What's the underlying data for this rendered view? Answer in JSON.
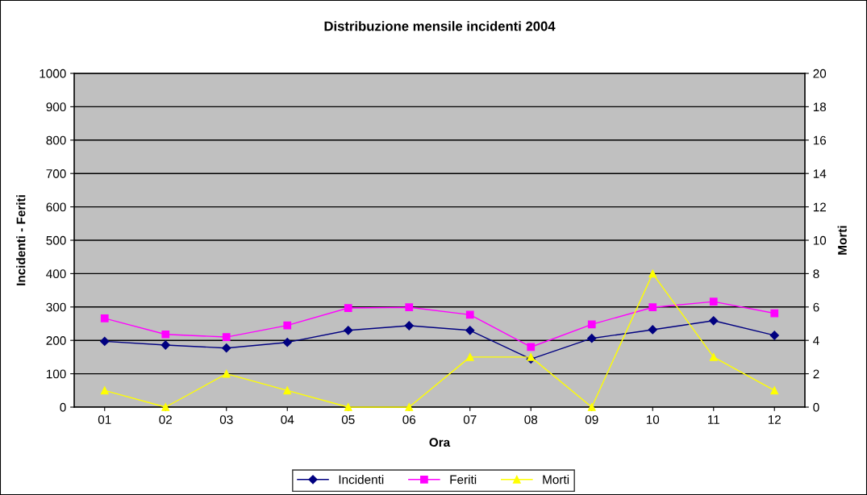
{
  "chart_data": {
    "type": "line",
    "title": "Distribuzione mensile incidenti 2004",
    "xlabel": "Ora",
    "ylabel": "Incidenti - Feriti",
    "y2label": "Morti",
    "categories": [
      "01",
      "02",
      "03",
      "04",
      "05",
      "06",
      "07",
      "08",
      "09",
      "10",
      "11",
      "12"
    ],
    "series": [
      {
        "name": "Incidenti",
        "color": "#000080",
        "marker": "diamond",
        "values": [
          197,
          186,
          177,
          194,
          230,
          244,
          230,
          144,
          206,
          232,
          259,
          215
        ]
      },
      {
        "name": "Feriti",
        "color": "#ff00ff",
        "marker": "square",
        "values": [
          266,
          218,
          210,
          245,
          297,
          299,
          277,
          180,
          248,
          299,
          316,
          281
        ]
      },
      {
        "name": "Morti",
        "color": "#ffff00",
        "marker": "triangle",
        "axis": "y2",
        "values": [
          1,
          0,
          2,
          1,
          0,
          0,
          3,
          3,
          0,
          8,
          3,
          1
        ]
      }
    ],
    "ylim": [
      0,
      1000
    ],
    "yticks": [
      0,
      100,
      200,
      300,
      400,
      500,
      600,
      700,
      800,
      900,
      1000
    ],
    "y2lim": [
      0,
      20
    ],
    "y2ticks": [
      0,
      2,
      4,
      6,
      8,
      10,
      12,
      14,
      16,
      18,
      20
    ],
    "grid": "y",
    "legend": "bottom"
  }
}
